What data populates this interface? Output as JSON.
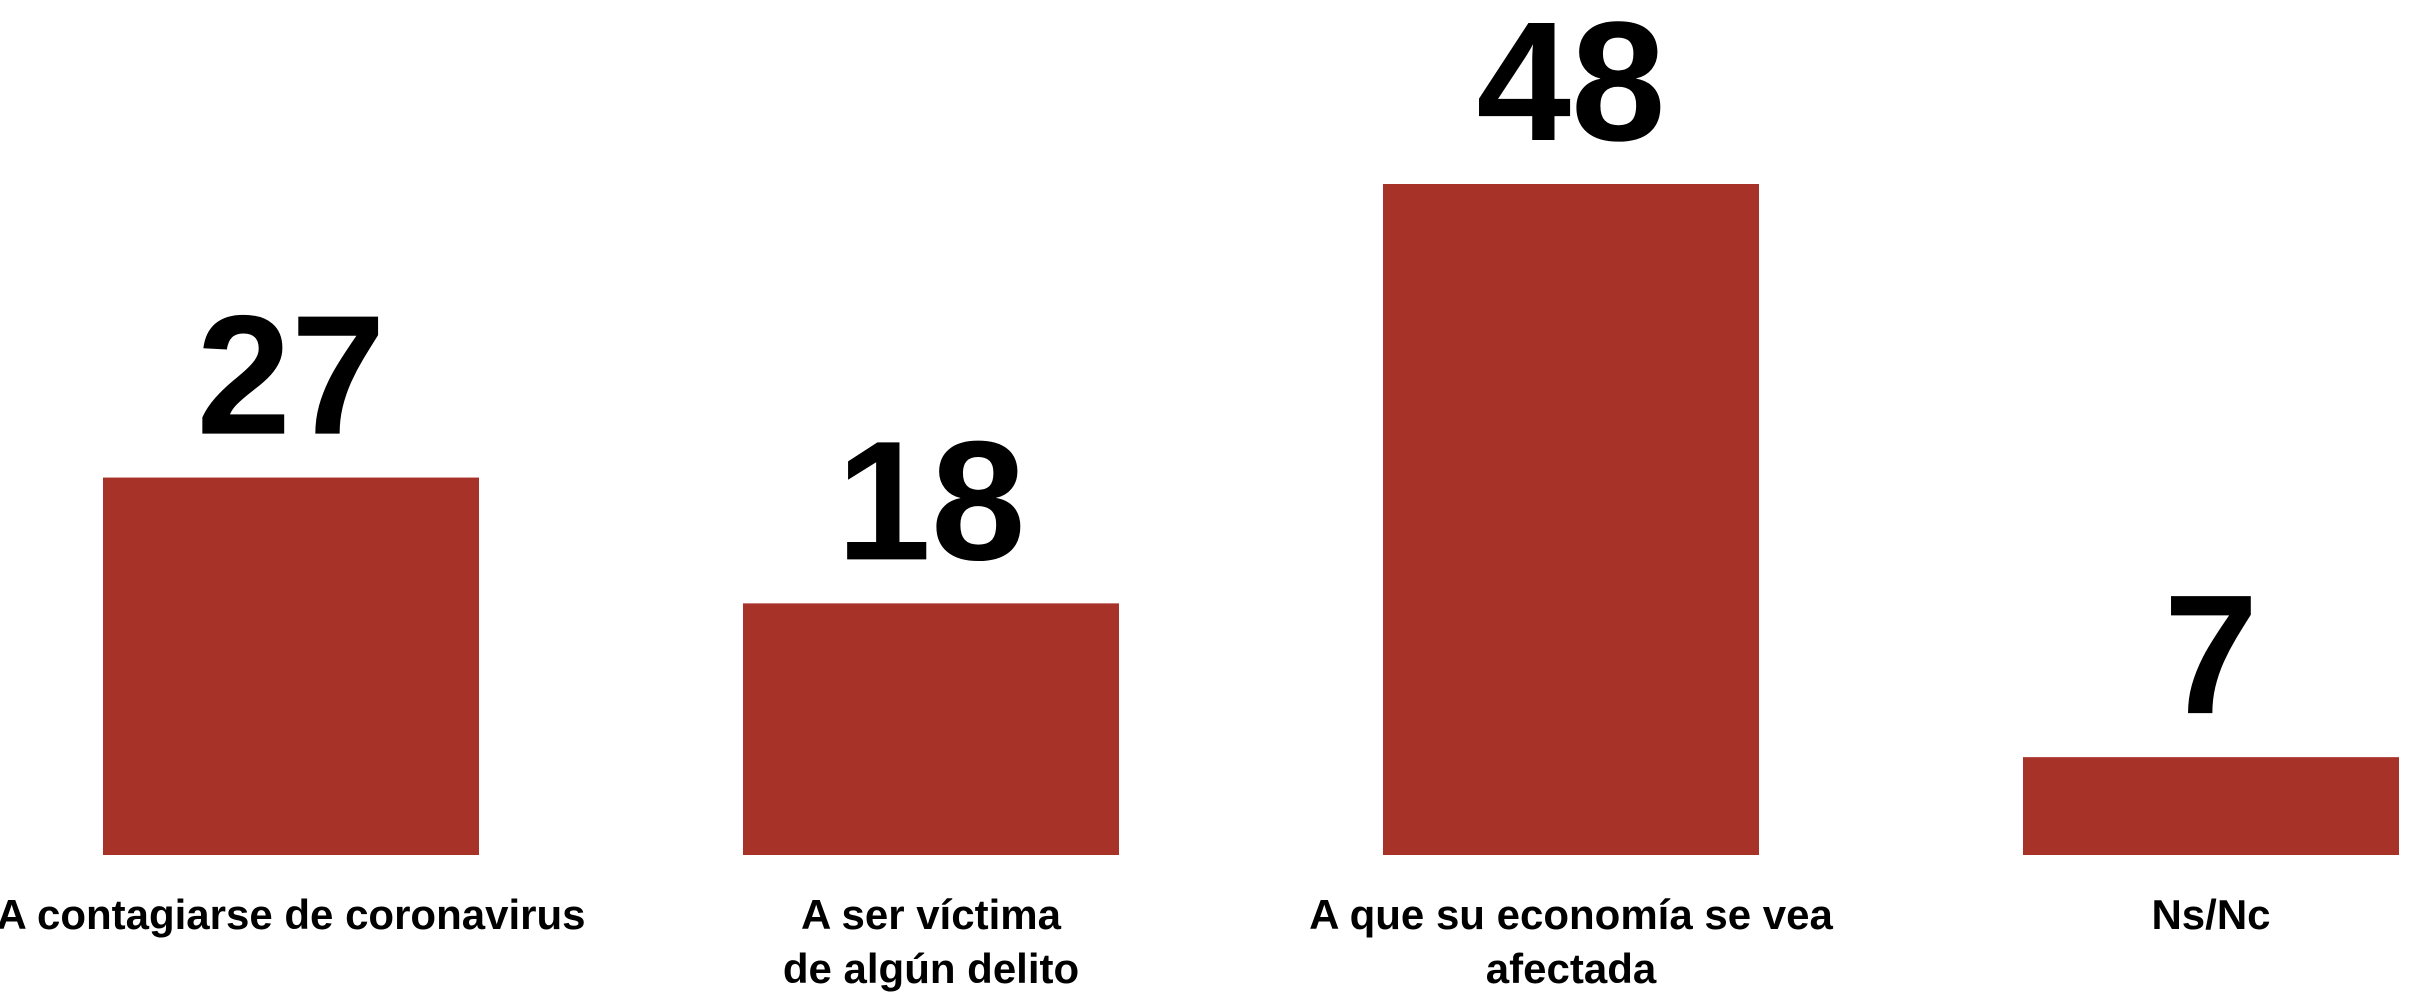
{
  "chart_data": {
    "type": "bar",
    "categories": [
      [
        "A contagiarse de coronavirus"
      ],
      [
        "A ser víctima",
        "de algún delito"
      ],
      [
        "A que su economía se vea",
        "afectada"
      ],
      [
        "Ns/Nc"
      ]
    ],
    "values": [
      27,
      18,
      48,
      7
    ],
    "title": "",
    "xlabel": "",
    "ylabel": "",
    "ylim": [
      0,
      48
    ],
    "grid": false,
    "legend": "none",
    "bar_color": "#a63228",
    "text_color": "#000000"
  }
}
